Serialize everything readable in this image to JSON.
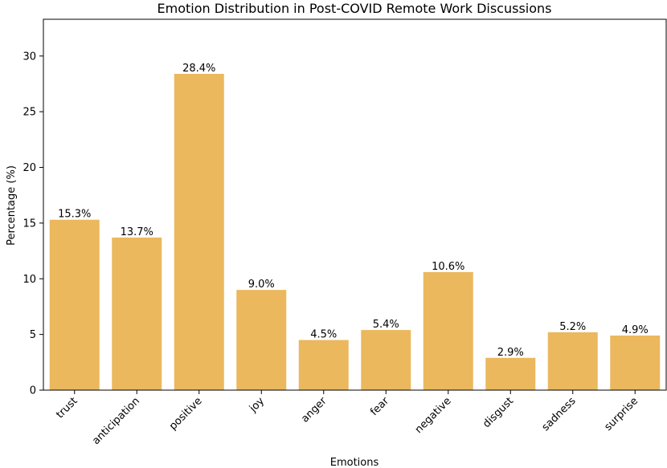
{
  "chart_data": {
    "type": "bar",
    "title": "Emotion Distribution in Post-COVID Remote Work Discussions",
    "xlabel": "Emotions",
    "ylabel": "Percentage (%)",
    "categories": [
      "trust",
      "anticipation",
      "positive",
      "joy",
      "anger",
      "fear",
      "negative",
      "disgust",
      "sadness",
      "surprise"
    ],
    "values": [
      15.3,
      13.7,
      28.4,
      9.0,
      4.5,
      5.4,
      10.6,
      2.9,
      5.2,
      4.9
    ],
    "data_labels": [
      "15.3%",
      "13.7%",
      "28.4%",
      "9.0%",
      "4.5%",
      "5.4%",
      "10.6%",
      "2.9%",
      "5.2%",
      "4.9%"
    ],
    "yticks": [
      0,
      5,
      10,
      15,
      20,
      25,
      30
    ],
    "ytick_labels": [
      "0",
      "5",
      "10",
      "15",
      "20",
      "25",
      "30"
    ],
    "ylim": [
      0,
      33.3
    ],
    "grid": false,
    "legend": "none",
    "bar_color": "#ebb85e"
  }
}
